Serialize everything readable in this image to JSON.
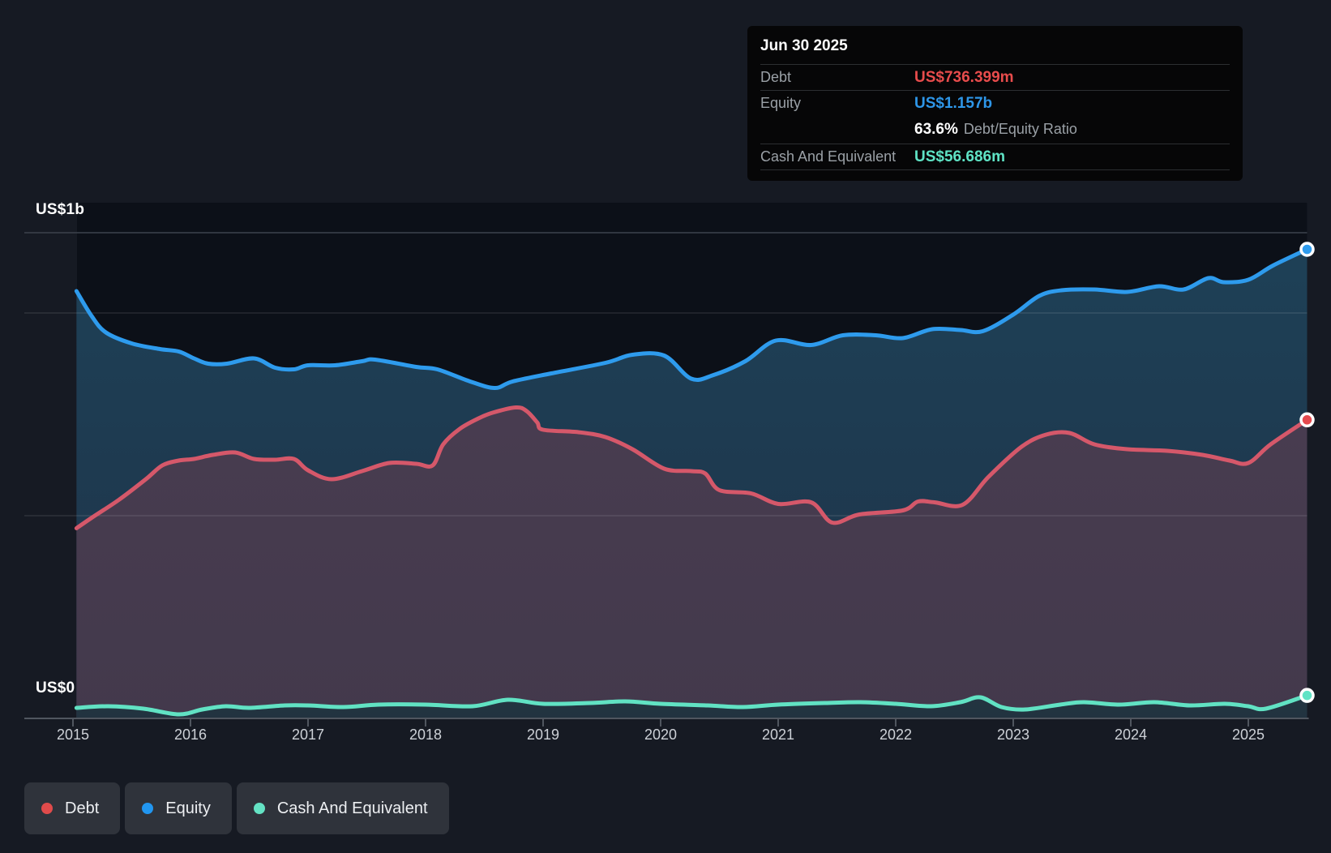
{
  "axis": {
    "y_top": "US$1b",
    "y_bottom": "US$0"
  },
  "tooltip": {
    "date": "Jun 30 2025",
    "debt_label": "Debt",
    "debt_value": "US$736.399m",
    "equity_label": "Equity",
    "equity_value": "US$1.157b",
    "ratio_value": "63.6%",
    "ratio_label": "Debt/Equity Ratio",
    "cash_label": "Cash And Equivalent",
    "cash_value": "US$56.686m"
  },
  "legend": [
    {
      "label": "Debt",
      "color": "#e04b4b"
    },
    {
      "label": "Equity",
      "color": "#2196f0"
    },
    {
      "label": "Cash And Equivalent",
      "color": "#64e2c4"
    }
  ],
  "chart_data": {
    "type": "area",
    "x_ticks": [
      2015,
      2016,
      2017,
      2018,
      2019,
      2020,
      2021,
      2022,
      2023,
      2024,
      2025
    ],
    "y_unit": "US$ millions",
    "ylim": [
      0,
      1198
    ],
    "gridline_values": [
      1000,
      500
    ],
    "y_axis_labels": [
      {
        "text": "US$1b",
        "value": 1000
      },
      {
        "text": "US$0",
        "value": 0
      }
    ],
    "legend_position": "bottom-left",
    "hover_point": {
      "date": "Jun 30 2025",
      "x": 2025.5
    },
    "series": [
      {
        "name": "Equity",
        "line_color": "#2e9bed",
        "accent_color": "#2e9bed",
        "fill_top": "#1e4157",
        "fill_bottom": "#1f3349",
        "end_value_label": "US$1.157b",
        "points": [
          [
            2015.03,
            1054
          ],
          [
            2015.16,
            992
          ],
          [
            2015.28,
            952
          ],
          [
            2015.5,
            925
          ],
          [
            2015.74,
            911
          ],
          [
            2015.9,
            905
          ],
          [
            2016.03,
            888
          ],
          [
            2016.15,
            875
          ],
          [
            2016.31,
            875
          ],
          [
            2016.54,
            888
          ],
          [
            2016.72,
            865
          ],
          [
            2016.88,
            861
          ],
          [
            2017.0,
            871
          ],
          [
            2017.23,
            871
          ],
          [
            2017.46,
            881
          ],
          [
            2017.57,
            885
          ],
          [
            2017.92,
            867
          ],
          [
            2018.1,
            861
          ],
          [
            2018.38,
            831
          ],
          [
            2018.59,
            815
          ],
          [
            2018.74,
            831
          ],
          [
            2019.07,
            851
          ],
          [
            2019.53,
            877
          ],
          [
            2019.76,
            897
          ],
          [
            2020.03,
            895
          ],
          [
            2020.26,
            838
          ],
          [
            2020.45,
            847
          ],
          [
            2020.72,
            881
          ],
          [
            2020.98,
            932
          ],
          [
            2021.28,
            921
          ],
          [
            2021.55,
            945
          ],
          [
            2021.83,
            945
          ],
          [
            2022.06,
            938
          ],
          [
            2022.31,
            960
          ],
          [
            2022.55,
            958
          ],
          [
            2022.74,
            955
          ],
          [
            2023.0,
            996
          ],
          [
            2023.22,
            1042
          ],
          [
            2023.41,
            1056
          ],
          [
            2023.69,
            1058
          ],
          [
            2023.97,
            1052
          ],
          [
            2024.24,
            1066
          ],
          [
            2024.45,
            1058
          ],
          [
            2024.66,
            1086
          ],
          [
            2024.79,
            1076
          ],
          [
            2025.0,
            1082
          ],
          [
            2025.21,
            1117
          ],
          [
            2025.5,
            1157
          ]
        ]
      },
      {
        "name": "Debt",
        "line_color": "#d5586a",
        "accent_color": "#e4494e",
        "fill_top": "#4b3e52",
        "fill_bottom": "#43394c",
        "end_value_label": "US$736.399m",
        "points": [
          [
            2015.03,
            469
          ],
          [
            2015.16,
            495
          ],
          [
            2015.39,
            539
          ],
          [
            2015.62,
            590
          ],
          [
            2015.76,
            624
          ],
          [
            2015.9,
            636
          ],
          [
            2016.03,
            640
          ],
          [
            2016.19,
            650
          ],
          [
            2016.38,
            656
          ],
          [
            2016.54,
            640
          ],
          [
            2016.72,
            638
          ],
          [
            2016.88,
            640
          ],
          [
            2017.0,
            612
          ],
          [
            2017.2,
            590
          ],
          [
            2017.46,
            610
          ],
          [
            2017.69,
            630
          ],
          [
            2017.92,
            628
          ],
          [
            2018.06,
            624
          ],
          [
            2018.15,
            676
          ],
          [
            2018.29,
            714
          ],
          [
            2018.45,
            740
          ],
          [
            2018.57,
            754
          ],
          [
            2018.77,
            767
          ],
          [
            2018.86,
            758
          ],
          [
            2018.95,
            730
          ],
          [
            2019.0,
            712
          ],
          [
            2019.3,
            706
          ],
          [
            2019.53,
            694
          ],
          [
            2019.76,
            664
          ],
          [
            2020.03,
            616
          ],
          [
            2020.26,
            610
          ],
          [
            2020.38,
            604
          ],
          [
            2020.5,
            563
          ],
          [
            2020.77,
            555
          ],
          [
            2021.0,
            529
          ],
          [
            2021.28,
            533
          ],
          [
            2021.46,
            483
          ],
          [
            2021.69,
            503
          ],
          [
            2022.06,
            513
          ],
          [
            2022.19,
            535
          ],
          [
            2022.33,
            533
          ],
          [
            2022.57,
            527
          ],
          [
            2022.79,
            596
          ],
          [
            2023.07,
            670
          ],
          [
            2023.28,
            700
          ],
          [
            2023.48,
            704
          ],
          [
            2023.69,
            676
          ],
          [
            2023.97,
            664
          ],
          [
            2024.31,
            660
          ],
          [
            2024.61,
            650
          ],
          [
            2024.84,
            636
          ],
          [
            2025.0,
            630
          ],
          [
            2025.19,
            676
          ],
          [
            2025.5,
            736.399
          ]
        ]
      },
      {
        "name": "Cash And Equivalent",
        "line_color": "#61e2c3",
        "accent_color": "#5fe3c5",
        "fill_top": "#3a5854",
        "fill_bottom": "#223340",
        "end_value_label": "US$56.686m",
        "points": [
          [
            2015.03,
            26
          ],
          [
            2015.3,
            30
          ],
          [
            2015.6,
            24
          ],
          [
            2015.9,
            10
          ],
          [
            2016.1,
            22
          ],
          [
            2016.3,
            30
          ],
          [
            2016.5,
            26
          ],
          [
            2016.8,
            32
          ],
          [
            2017.0,
            32
          ],
          [
            2017.3,
            28
          ],
          [
            2017.6,
            34
          ],
          [
            2018.0,
            34
          ],
          [
            2018.4,
            30
          ],
          [
            2018.7,
            46
          ],
          [
            2019.0,
            36
          ],
          [
            2019.4,
            38
          ],
          [
            2019.7,
            42
          ],
          [
            2020.0,
            36
          ],
          [
            2020.4,
            32
          ],
          [
            2020.7,
            28
          ],
          [
            2021.0,
            34
          ],
          [
            2021.4,
            38
          ],
          [
            2021.7,
            40
          ],
          [
            2022.0,
            36
          ],
          [
            2022.3,
            30
          ],
          [
            2022.55,
            40
          ],
          [
            2022.72,
            52
          ],
          [
            2022.9,
            28
          ],
          [
            2023.1,
            22
          ],
          [
            2023.4,
            34
          ],
          [
            2023.6,
            40
          ],
          [
            2023.9,
            34
          ],
          [
            2024.2,
            40
          ],
          [
            2024.5,
            32
          ],
          [
            2024.8,
            36
          ],
          [
            2025.0,
            30
          ],
          [
            2025.15,
            24
          ],
          [
            2025.5,
            56.686
          ]
        ]
      }
    ]
  }
}
